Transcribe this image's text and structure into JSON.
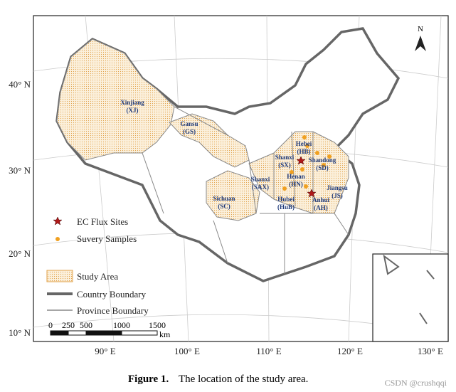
{
  "north": "N",
  "latitude_labels": [
    "40° N",
    "30° N",
    "20° N",
    "10° N"
  ],
  "longitude_labels": [
    "90° E",
    "100° E",
    "110° E",
    "120° E",
    "130° E"
  ],
  "provinces": [
    {
      "name": "Xinjiang",
      "abbr": "(XJ)"
    },
    {
      "name": "Gansu",
      "abbr": "(GS)"
    },
    {
      "name": "Hebei",
      "abbr": "(HB)"
    },
    {
      "name": "Shanxi",
      "abbr": "(SX)"
    },
    {
      "name": "Shandong",
      "abbr": "(SD)"
    },
    {
      "name": "Henan",
      "abbr": "(HN)"
    },
    {
      "name": "Shanxi",
      "abbr": "(SAX)"
    },
    {
      "name": "Sichuan",
      "abbr": "(SC)"
    },
    {
      "name": "Hubei",
      "abbr": "(HuB)"
    },
    {
      "name": "Anhui",
      "abbr": "(AH)"
    },
    {
      "name": "Jiangsu",
      "abbr": "(JS)"
    }
  ],
  "legend": [
    "EC Flux Sites",
    "Suvery Samples",
    "Study Area",
    "Country  Boundary",
    "Province Boundary"
  ],
  "scale": {
    "labels": [
      0,
      250,
      500,
      1000,
      1500
    ],
    "unit": "km"
  },
  "caption": {
    "label": "Figure 1.",
    "text": "The location of the study area."
  },
  "watermark": "CSDN @crushqqi"
}
